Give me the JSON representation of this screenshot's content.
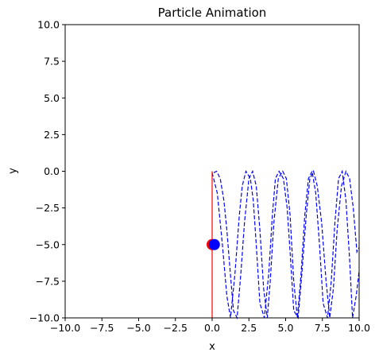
{
  "chart_data": {
    "type": "line",
    "title": "Particle Animation",
    "xlabel": "x",
    "ylabel": "y",
    "xlim": [
      -10.0,
      10.0
    ],
    "ylim": [
      -10.0,
      10.0
    ],
    "grid": false,
    "x_ticks": [
      "−10.0",
      "−7.5",
      "−5.0",
      "−2.5",
      "0.0",
      "2.5",
      "5.0",
      "7.5",
      "10.0"
    ],
    "y_ticks": [
      "10.0",
      "7.5",
      "5.0",
      "2.5",
      "0.0",
      "−2.5",
      "−5.0",
      "−7.5",
      "−10.0"
    ],
    "series": [
      {
        "style": "dashed",
        "color": "#0000ff",
        "x": [
          0.0,
          0.35,
          0.7,
          1.0,
          1.25,
          1.55,
          1.85,
          2.05,
          2.3,
          2.6,
          2.8,
          3.0,
          3.25,
          3.55,
          3.85,
          4.1,
          4.3,
          4.55,
          4.85,
          5.1,
          5.3,
          5.55,
          5.85,
          6.1,
          6.4,
          6.65,
          6.9,
          7.15,
          7.45,
          7.75,
          8.0,
          8.25,
          8.5,
          8.8,
          9.1,
          9.35,
          9.6,
          9.85,
          10.0
        ],
        "y": [
          -0.1,
          -1.5,
          -5.0,
          -8.5,
          -10.0,
          -7.0,
          -3.0,
          -1.0,
          0.0,
          -0.5,
          -2.0,
          -5.0,
          -9.0,
          -10.0,
          -7.0,
          -3.0,
          -0.5,
          0.0,
          -0.5,
          -2.5,
          -5.5,
          -9.5,
          -10.0,
          -7.0,
          -3.0,
          -0.5,
          0.0,
          -1.0,
          -3.5,
          -7.5,
          -10.0,
          -8.0,
          -4.0,
          -1.0,
          0.0,
          -0.5,
          -2.5,
          -5.5,
          -5.2
        ]
      },
      {
        "style": "dashed",
        "color": "#0000ff",
        "x": [
          0.1,
          0.3,
          0.55,
          0.8,
          1.0,
          1.2,
          1.45,
          1.7,
          1.95,
          2.2,
          2.5,
          2.75,
          3.0,
          3.25,
          3.5,
          3.75,
          3.95,
          4.2,
          4.5,
          4.8,
          5.05,
          5.3,
          5.55,
          5.8,
          6.05,
          6.3,
          6.55,
          6.8,
          7.05,
          7.3,
          7.55,
          7.85,
          8.1,
          8.35,
          8.6,
          8.85,
          9.1,
          9.35,
          9.55,
          9.8,
          10.0
        ],
        "y": [
          -0.1,
          0.0,
          -0.5,
          -2.0,
          -4.0,
          -6.5,
          -9.5,
          -10.0,
          -7.0,
          -3.5,
          -0.5,
          0.0,
          -1.0,
          -4.0,
          -8.0,
          -10.0,
          -7.5,
          -3.5,
          -0.5,
          0.0,
          -0.5,
          -3.0,
          -7.5,
          -10.0,
          -7.0,
          -3.0,
          -0.5,
          0.0,
          -1.5,
          -5.0,
          -9.0,
          -10.0,
          -7.5,
          -3.5,
          -0.5,
          0.0,
          -2.0,
          -6.0,
          -10.0,
          -8.5,
          -6.8
        ]
      },
      {
        "style": "solid",
        "color": "#ff0000",
        "x": [
          0.0,
          0.0
        ],
        "y": [
          0.0,
          -10.0
        ]
      }
    ],
    "markers": [
      {
        "x": 0.0,
        "y": -5.0,
        "color": "#ff0000"
      },
      {
        "x": 0.15,
        "y": -5.0,
        "color": "#0000ff"
      }
    ]
  }
}
